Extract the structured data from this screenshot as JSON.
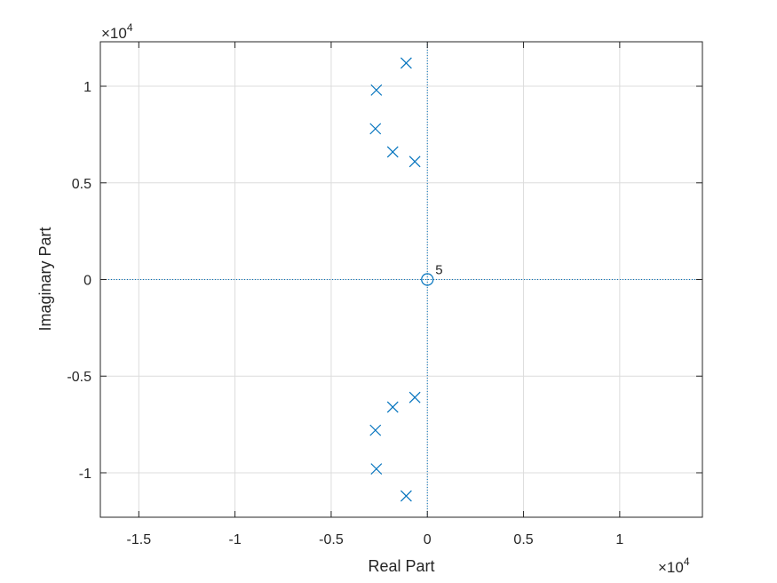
{
  "chart_data": {
    "type": "scatter",
    "title": "",
    "xlabel": "Real Part",
    "ylabel": "Imaginary Part",
    "xlim": [
      -1.7,
      1.43
    ],
    "ylim": [
      -1.23,
      1.23
    ],
    "axis_scale_note": "×10^4 on both axes; values below are in displayed (scaled) units",
    "x_exponent_base": "×10",
    "x_exponent_power": "4",
    "y_exponent_base": "×10",
    "y_exponent_power": "4",
    "xticks": [
      -1.5,
      -1,
      -0.5,
      0,
      0.5,
      1
    ],
    "xtick_labels": [
      "-1.5",
      "-1",
      "-0.5",
      "0",
      "0.5",
      "1"
    ],
    "yticks": [
      -1,
      -0.5,
      0,
      0.5,
      1
    ],
    "ytick_labels": [
      "-1",
      "-0.5",
      "0",
      "0.5",
      "1"
    ],
    "grid": true,
    "color": "#0072BD",
    "poles": [
      {
        "x": -0.11,
        "y": 1.12
      },
      {
        "x": -0.265,
        "y": 0.98
      },
      {
        "x": -0.27,
        "y": 0.78
      },
      {
        "x": -0.18,
        "y": 0.66
      },
      {
        "x": -0.065,
        "y": 0.61
      },
      {
        "x": -0.065,
        "y": -0.61
      },
      {
        "x": -0.18,
        "y": -0.66
      },
      {
        "x": -0.27,
        "y": -0.78
      },
      {
        "x": -0.265,
        "y": -0.98
      },
      {
        "x": -0.11,
        "y": -1.12
      }
    ],
    "zeros": [
      {
        "x": 0,
        "y": 0,
        "multiplicity": 5
      }
    ],
    "multiplicity_label": "5"
  }
}
